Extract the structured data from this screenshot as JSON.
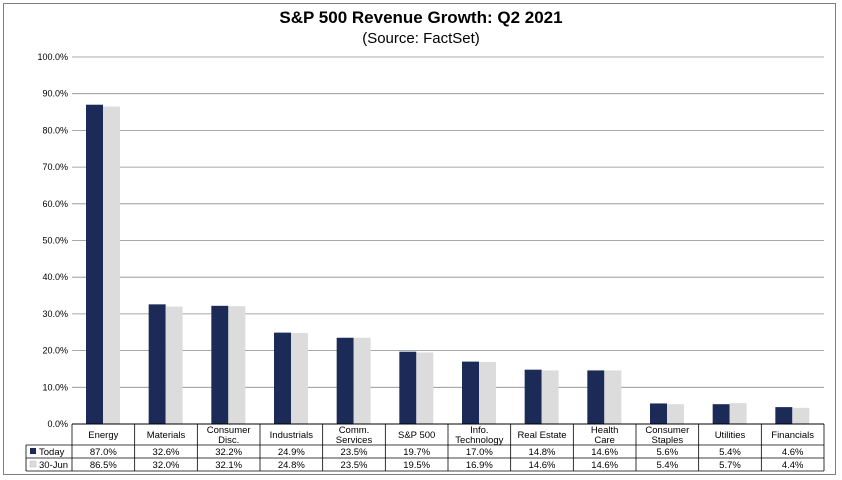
{
  "chart_data": {
    "type": "bar",
    "title": "S&P 500 Revenue Growth: Q2 2021",
    "subtitle": "(Source: FactSet)",
    "categories": [
      [
        "Energy"
      ],
      [
        "Materials"
      ],
      [
        "Consumer",
        "Disc."
      ],
      [
        "Industrials"
      ],
      [
        "Comm.",
        "Services"
      ],
      [
        "S&P 500"
      ],
      [
        "Info.",
        "Technology"
      ],
      [
        "Real Estate"
      ],
      [
        "Health",
        "Care"
      ],
      [
        "Consumer",
        "Staples"
      ],
      [
        "Utilities"
      ],
      [
        "Financials"
      ]
    ],
    "series": [
      {
        "name": "Today",
        "color": "#1b2a56",
        "values": [
          87.0,
          32.6,
          32.2,
          24.9,
          23.5,
          19.7,
          17.0,
          14.8,
          14.6,
          5.6,
          5.4,
          4.6
        ],
        "labels": [
          "87.0%",
          "32.6%",
          "32.2%",
          "24.9%",
          "23.5%",
          "19.7%",
          "17.0%",
          "14.8%",
          "14.6%",
          "5.6%",
          "5.4%",
          "4.6%"
        ]
      },
      {
        "name": "30-Jun",
        "color": "#dcdcdc",
        "values": [
          86.5,
          32.0,
          32.1,
          24.8,
          23.5,
          19.5,
          16.9,
          14.6,
          14.6,
          5.4,
          5.7,
          4.4
        ],
        "labels": [
          "86.5%",
          "32.0%",
          "32.1%",
          "24.8%",
          "23.5%",
          "19.5%",
          "16.9%",
          "14.6%",
          "14.6%",
          "5.4%",
          "5.7%",
          "4.4%"
        ]
      }
    ],
    "ylim": [
      0,
      100
    ],
    "yticks": [
      "0.0%",
      "10.0%",
      "20.0%",
      "30.0%",
      "40.0%",
      "50.0%",
      "60.0%",
      "70.0%",
      "80.0%",
      "90.0%",
      "100.0%"
    ],
    "grid": true,
    "legend": "data-table"
  }
}
